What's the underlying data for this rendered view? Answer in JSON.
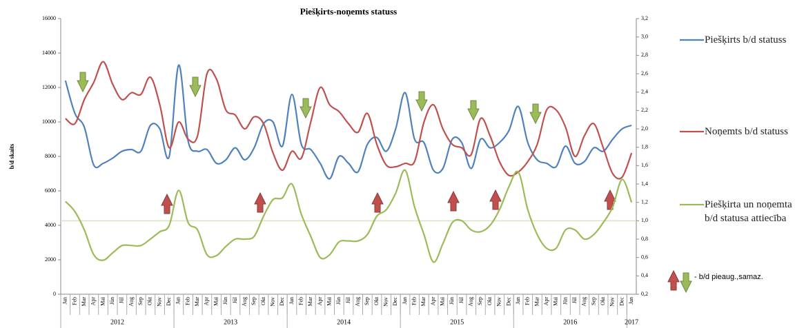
{
  "chart_data": {
    "type": "line",
    "title": "Piešķirts-noņemts statuss",
    "ylabel": "b/d skaits",
    "categories": [
      "Jan",
      "Feb",
      "Mar",
      "Apr",
      "Mai",
      "Jūn",
      "Jūl",
      "Aug",
      "Sep",
      "Okt",
      "Nov",
      "Dec",
      "Jan",
      "Feb",
      "Mar",
      "Apr",
      "Mai",
      "Jūn",
      "Jūl",
      "Aug",
      "Sep",
      "Okt",
      "Nov",
      "Dec",
      "Jan",
      "Feb",
      "Mar",
      "Apr",
      "Mai",
      "Jūn",
      "Jūl",
      "Aug",
      "Sep",
      "Okt",
      "Nov",
      "Dec",
      "Jan",
      "Feb",
      "Mar",
      "Apr",
      "Mai",
      "Jūn",
      "Jūl",
      "Aug",
      "Sep",
      "Okt",
      "Nov",
      "Dec",
      "Jan",
      "Feb",
      "Mar",
      "Apr",
      "Mai",
      "Jūn",
      "Jūl",
      "Aug",
      "Sep",
      "Okt",
      "Nov",
      "Dec",
      "Jan"
    ],
    "years": [
      "2012",
      "2013",
      "2014",
      "2015",
      "2016",
      "2017"
    ],
    "series": [
      {
        "name": "Piešķirts b/d statuss",
        "color": "#4f81bd",
        "values": [
          12400,
          10500,
          9700,
          7500,
          7600,
          7900,
          8300,
          8400,
          8300,
          9800,
          9600,
          8000,
          13300,
          8900,
          8300,
          8400,
          7600,
          7800,
          8500,
          7800,
          8500,
          9900,
          10000,
          8600,
          11600,
          8700,
          8400,
          7600,
          6700,
          8000,
          7600,
          7100,
          8700,
          9100,
          8300,
          9600,
          11700,
          9000,
          8800,
          7200,
          7300,
          9000,
          8800,
          7300,
          9000,
          8500,
          8800,
          9500,
          10900,
          8800,
          7800,
          7600,
          7400,
          8600,
          7600,
          7700,
          8500,
          8300,
          9000,
          9600,
          9800
        ]
      },
      {
        "name": "Noņemts b/d statuss",
        "color": "#c0504d",
        "values": [
          10200,
          9900,
          11300,
          12300,
          13500,
          12200,
          11300,
          11700,
          11600,
          12600,
          11000,
          8500,
          10000,
          9000,
          9200,
          12800,
          12500,
          10700,
          10400,
          9600,
          10300,
          9900,
          8200,
          7200,
          8300,
          7900,
          10000,
          12000,
          11000,
          10600,
          9900,
          9400,
          10500,
          8700,
          7500,
          7400,
          7600,
          7700,
          10000,
          11000,
          9600,
          8700,
          8500,
          8100,
          10200,
          9200,
          7700,
          6900,
          7100,
          7700,
          8700,
          10700,
          10700,
          9700,
          8000,
          9200,
          9900,
          8500,
          7000,
          6800,
          8200
        ]
      },
      {
        "name": "Piešķirta un noņemta b/d statusa attiecība",
        "color": "#9bbb59",
        "axis": "y2",
        "values": [
          1.21,
          1.1,
          0.9,
          0.63,
          0.57,
          0.65,
          0.73,
          0.73,
          0.73,
          0.8,
          0.88,
          0.95,
          1.33,
          0.98,
          0.9,
          0.63,
          0.62,
          0.72,
          0.8,
          0.8,
          0.83,
          1.05,
          1.23,
          1.25,
          1.4,
          1.07,
          0.83,
          0.6,
          0.63,
          0.77,
          0.78,
          0.78,
          0.85,
          1.05,
          1.12,
          1.3,
          1.55,
          1.15,
          0.85,
          0.55,
          0.75,
          0.98,
          1.0,
          0.9,
          0.88,
          0.95,
          1.12,
          1.37,
          1.53,
          1.12,
          0.85,
          0.7,
          0.7,
          0.9,
          0.9,
          0.8,
          0.85,
          0.98,
          1.15,
          1.45,
          1.2
        ]
      }
    ],
    "reference_line": {
      "value": 1.0,
      "axis": "y2",
      "color": "#d7e4bd"
    },
    "ylim": [
      0,
      16000
    ],
    "yticks": [
      0,
      2000,
      4000,
      6000,
      8000,
      10000,
      12000,
      14000,
      16000
    ],
    "y2lim": [
      0.2,
      3.2
    ],
    "y2ticks": [
      {
        "value": 0.2,
        "label": "0,2"
      },
      {
        "value": 0.4,
        "label": "0,4"
      },
      {
        "value": 0.6,
        "label": "0,6"
      },
      {
        "value": 0.8,
        "label": "0,8"
      },
      {
        "value": 1.0,
        "label": "1,0"
      },
      {
        "value": 1.2,
        "label": "1,2"
      },
      {
        "value": 1.4,
        "label": "1,4"
      },
      {
        "value": 1.6,
        "label": "1,6"
      },
      {
        "value": 1.8,
        "label": "1,8"
      },
      {
        "value": 2.0,
        "label": "2,0"
      },
      {
        "value": 2.2,
        "label": "2,2"
      },
      {
        "value": 2.4,
        "label": "2,4"
      },
      {
        "value": 2.6,
        "label": "2,6"
      },
      {
        "value": 2.8,
        "label": "2,8"
      },
      {
        "value": 3.0,
        "label": "3,0"
      },
      {
        "value": 3.2,
        "label": "3,2"
      }
    ],
    "arrow_legend": "- b/d pieaug.,samaz."
  }
}
